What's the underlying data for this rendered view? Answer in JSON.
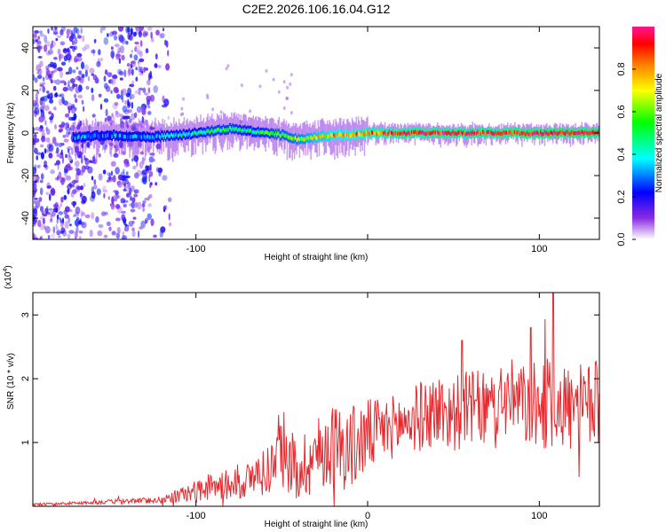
{
  "title": "C2E2.2026.106.16.04.G12",
  "chart_data": [
    {
      "type": "heatmap",
      "name": "spectrogram",
      "xlabel": "Height of straight line (km)",
      "ylabel": "Frequency (Hz)",
      "xlim": [
        -195,
        135
      ],
      "ylim": [
        -50,
        50
      ],
      "xticks": [
        -100,
        0,
        100
      ],
      "xtick_labels": [
        "-100",
        "",
        "100"
      ],
      "yticks": [
        40,
        20,
        0,
        -20,
        -40
      ],
      "ytick_labels": [
        "40",
        "20",
        "0",
        "-20",
        "-40"
      ],
      "colorbar": {
        "label": "Normalized spectral amplitude",
        "range": [
          0,
          1
        ],
        "ticks": [
          0.0,
          0.2,
          0.4,
          0.6,
          0.8
        ],
        "tick_labels": [
          "0.0",
          "0.2",
          "0.4",
          "0.6",
          "0.8"
        ],
        "colors": [
          "#ffffff",
          "#8a2be2",
          "#0000ff",
          "#00ffff",
          "#00ff00",
          "#ffff00",
          "#ff8000",
          "#ff0000",
          "#ff1493"
        ]
      },
      "ridge": {
        "x": [
          -170,
          -150,
          -130,
          -110,
          -100,
          -90,
          -80,
          -70,
          -60,
          -50,
          -40,
          -30,
          -20,
          -10,
          0,
          10,
          20,
          40,
          60,
          80,
          100,
          110,
          120,
          135
        ],
        "freq": [
          -2,
          -1,
          -2,
          -1,
          0,
          1,
          2,
          1,
          0,
          -1,
          -3,
          -2,
          -1,
          -1,
          0,
          0,
          0,
          0,
          0,
          0,
          0,
          0,
          0,
          0
        ],
        "amplitude": [
          0.3,
          0.3,
          0.35,
          0.4,
          0.45,
          0.5,
          0.5,
          0.45,
          0.5,
          0.55,
          0.6,
          0.7,
          0.75,
          0.8,
          0.85,
          0.85,
          0.9,
          0.9,
          0.9,
          0.9,
          0.95,
          0.95,
          0.95,
          0.95
        ]
      },
      "noise_region_x": [
        -195,
        -115
      ]
    },
    {
      "type": "line",
      "name": "snr",
      "xlabel": "Height of straight line (km)",
      "ylabel": "SNR (10 * v/v)",
      "exponent_label": "(x10",
      "exponent_power": "4",
      "exponent_close": ")",
      "xlim": [
        -195,
        135
      ],
      "ylim": [
        0,
        3.35
      ],
      "xticks": [
        -100,
        0,
        100
      ],
      "xtick_labels": [
        "-100",
        "0",
        "100"
      ],
      "yticks": [
        1,
        2,
        3
      ],
      "ytick_labels": [
        "1",
        "2",
        "3"
      ],
      "series": [
        {
          "name": "SNR",
          "color": "#e8282d",
          "x": [
            -195,
            -180,
            -160,
            -140,
            -120,
            -105,
            -90,
            -80,
            -70,
            -60,
            -50,
            -40,
            -30,
            -20,
            -10,
            0,
            10,
            20,
            30,
            40,
            50,
            60,
            70,
            80,
            90,
            100,
            110,
            120,
            135
          ],
          "y": [
            0.03,
            0.04,
            0.06,
            0.08,
            0.1,
            0.2,
            0.3,
            0.35,
            0.4,
            0.55,
            0.8,
            0.6,
            0.8,
            1.0,
            0.9,
            1.1,
            1.2,
            1.3,
            1.4,
            1.5,
            1.45,
            1.55,
            1.5,
            1.7,
            1.6,
            1.55,
            1.65,
            1.5,
            1.6
          ],
          "noise_amplitude": [
            0.02,
            0.02,
            0.03,
            0.04,
            0.05,
            0.15,
            0.2,
            0.25,
            0.3,
            0.4,
            0.5,
            0.55,
            0.6,
            0.65,
            0.7,
            0.6,
            0.5,
            0.5,
            0.55,
            0.6,
            0.6,
            0.6,
            0.6,
            0.65,
            0.65,
            0.7,
            0.75,
            0.7,
            0.7
          ]
        }
      ],
      "peaks": [
        {
          "x": 108,
          "y": 3.35
        },
        {
          "x": 95,
          "y": 2.8
        },
        {
          "x": 55,
          "y": 2.6
        }
      ]
    }
  ]
}
